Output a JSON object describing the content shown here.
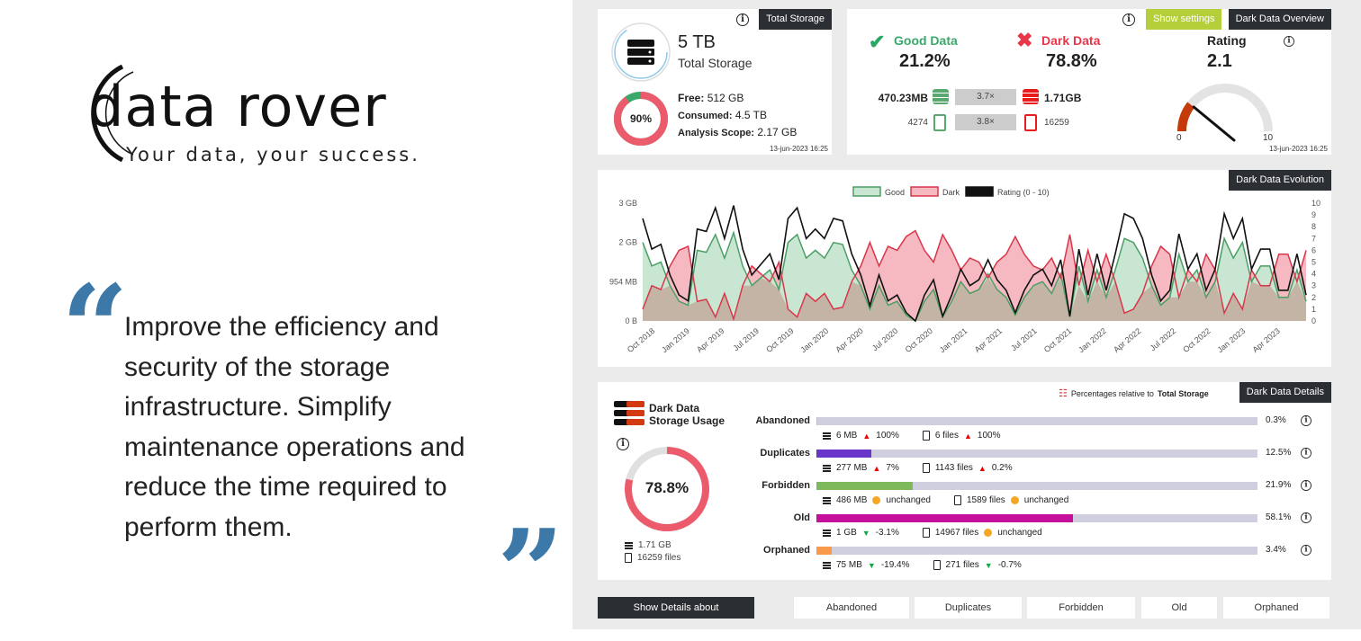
{
  "brand": {
    "name": "data rover",
    "tagline": "Your data, your success.",
    "quote": "Improve the efficiency and security of the storage infrastructure. Simplify maintenance operations and reduce the time required to perform them."
  },
  "total_storage": {
    "tag": "Total Storage",
    "value": "5 TB",
    "label": "Total Storage",
    "used_pct": 90,
    "used_pct_label": "90%",
    "free_label": "Free:",
    "free": "512 GB",
    "consumed_label": "Consumed:",
    "consumed": "4.5 TB",
    "scope_label": "Analysis Scope:",
    "scope": "2.17 GB",
    "timestamp": "13-jun-2023 16:25"
  },
  "overview": {
    "settings_label": "Show settings",
    "tag": "Dark Data Overview",
    "good_label": "Good Data",
    "good_pct": "21.2%",
    "dark_label": "Dark Data",
    "dark_pct": "78.8%",
    "good_size": "470.23MB",
    "size_ratio": "3.7×",
    "dark_size": "1.71GB",
    "good_files": "4274",
    "files_ratio": "3.8×",
    "dark_files": "16259",
    "rating_label": "Rating",
    "rating": "2.1",
    "rating_value": 2.1,
    "gauge_min": "0",
    "gauge_max": "10",
    "timestamp": "13-jun-2023 16:25"
  },
  "colors": {
    "good": "#3aa86b",
    "dark": "#e8364a",
    "donut": "#ec5b6b"
  },
  "chart_data": {
    "type": "area",
    "tag": "Dark Data Evolution",
    "legend": [
      "Good",
      "Dark",
      "Rating (0 - 10)"
    ],
    "legend_position": "top-center",
    "y_ticks": [
      {
        "v": 0,
        "label": "0 B"
      },
      {
        "v": 1,
        "label": "954 MB"
      },
      {
        "v": 2,
        "label": "2 GB"
      },
      {
        "v": 3,
        "label": "3 GB"
      }
    ],
    "ylim": [
      0,
      3
    ],
    "y2lim": [
      0,
      10
    ],
    "y2_ticks": [
      "0",
      "1",
      "2",
      "3",
      "4",
      "5",
      "6",
      "7",
      "8",
      "9",
      "10"
    ],
    "x_labels": [
      "Oct 2018",
      "Jan 2019",
      "Apr 2019",
      "Jul 2019",
      "Oct 2019",
      "Jan 2020",
      "Apr 2020",
      "Jul 2020",
      "Oct 2020",
      "Jan 2021",
      "Apr 2021",
      "Jul 2021",
      "Oct 2021",
      "Jan 2022",
      "Apr 2022",
      "Jul 2022",
      "Oct 2022",
      "Jan 2023",
      "Apr 2023"
    ],
    "series": [
      {
        "name": "Good",
        "unit": "GB",
        "values": [
          2.0,
          1.4,
          1.5,
          0.9,
          0.5,
          0.4,
          1.8,
          1.75,
          2.2,
          1.6,
          2.25,
          1.4,
          0.9,
          1.1,
          1.3,
          0.8,
          2.0,
          2.2,
          1.6,
          1.8,
          1.6,
          2.0,
          1.95,
          1.3,
          0.9,
          0.3,
          0.9,
          0.4,
          0.5,
          0.15,
          0.0,
          0.5,
          0.8,
          0.1,
          0.5,
          1.0,
          0.7,
          0.8,
          1.2,
          0.8,
          0.6,
          0.15,
          0.6,
          0.9,
          1.0,
          0.7,
          1.2,
          0.1,
          1.4,
          0.5,
          1.3,
          0.6,
          1.3,
          2.1,
          2.0,
          1.6,
          0.9,
          0.4,
          0.6,
          1.7,
          1.0,
          1.3,
          0.6,
          1.0,
          2.1,
          1.6,
          2.0,
          1.0,
          1.4,
          1.4,
          0.6,
          0.6,
          1.3,
          0.5
        ]
      },
      {
        "name": "Dark",
        "unit": "GB",
        "values": [
          0.3,
          0.9,
          0.8,
          1.4,
          1.8,
          1.9,
          0.5,
          0.55,
          0.1,
          0.7,
          0.05,
          0.9,
          1.4,
          1.2,
          1.0,
          1.5,
          0.3,
          0.1,
          0.7,
          0.5,
          0.7,
          0.3,
          0.35,
          1.0,
          1.4,
          2.0,
          1.4,
          1.9,
          1.8,
          2.15,
          2.3,
          1.8,
          1.5,
          2.2,
          1.8,
          1.3,
          1.6,
          1.5,
          1.1,
          1.5,
          1.7,
          2.15,
          1.7,
          1.4,
          1.3,
          1.6,
          1.1,
          2.2,
          0.9,
          1.8,
          1.0,
          1.7,
          1.0,
          0.2,
          0.3,
          0.7,
          1.4,
          1.9,
          1.7,
          0.6,
          1.3,
          1.0,
          1.7,
          1.3,
          0.2,
          0.7,
          0.3,
          1.3,
          0.9,
          0.9,
          1.7,
          1.7,
          1.0,
          1.8
        ]
      },
      {
        "name": "Rating (0 - 10)",
        "values": [
          8.7,
          6.1,
          6.5,
          3.9,
          2.2,
          1.7,
          7.8,
          7.6,
          9.6,
          7.0,
          9.8,
          6.1,
          3.9,
          4.8,
          5.7,
          3.5,
          8.7,
          9.6,
          7.0,
          7.8,
          7.0,
          8.7,
          8.5,
          5.7,
          3.9,
          1.3,
          3.9,
          1.7,
          2.2,
          0.7,
          0.0,
          2.2,
          3.5,
          0.4,
          2.2,
          4.4,
          3.0,
          3.5,
          5.2,
          3.5,
          2.6,
          0.7,
          2.6,
          3.9,
          4.4,
          3.0,
          5.2,
          0.4,
          6.1,
          2.2,
          5.7,
          2.6,
          5.7,
          9.1,
          8.7,
          7.0,
          3.9,
          1.7,
          2.6,
          7.4,
          4.4,
          5.7,
          2.6,
          4.4,
          9.1,
          7.0,
          8.7,
          4.4,
          6.1,
          6.1,
          2.6,
          2.6,
          5.7,
          2.2
        ]
      }
    ]
  },
  "details": {
    "tag": "Dark Data Details",
    "note_prefix": "Percentages relative to",
    "note_bold": "Total Storage",
    "title1": "Dark Data",
    "title2": "Storage Usage",
    "donut_pct": 78.8,
    "donut_label": "78.8%",
    "size": "1.71 GB",
    "files": "16259 files",
    "rows": [
      {
        "label": "Abandoned",
        "pct": 0.3,
        "pct_label": "0.3%",
        "color": "#f5c518",
        "size": "6 MB",
        "size_trend": "up",
        "size_change": "100%",
        "files": "6 files",
        "files_trend": "up",
        "files_change": "100%"
      },
      {
        "label": "Duplicates",
        "pct": 12.5,
        "pct_label": "12.5%",
        "color": "#6a35c9",
        "size": "277 MB",
        "size_trend": "up",
        "size_change": "7%",
        "files": "1143 files",
        "files_trend": "up",
        "files_change": "0.2%"
      },
      {
        "label": "Forbidden",
        "pct": 21.9,
        "pct_label": "21.9%",
        "color": "#7dba5c",
        "size": "486 MB",
        "size_trend": "same",
        "size_change": "unchanged",
        "files": "1589 files",
        "files_trend": "same",
        "files_change": "unchanged"
      },
      {
        "label": "Old",
        "pct": 58.1,
        "pct_label": "58.1%",
        "color": "#c4109a",
        "size": "1 GB",
        "size_trend": "down",
        "size_change": "-3.1%",
        "files": "14967 files",
        "files_trend": "same",
        "files_change": "unchanged"
      },
      {
        "label": "Orphaned",
        "pct": 3.4,
        "pct_label": "3.4%",
        "color": "#f79a4a",
        "size": "75 MB",
        "size_trend": "down",
        "size_change": "-19.4%",
        "files": "271 files",
        "files_trend": "down",
        "files_change": "-0.7%"
      }
    ]
  },
  "bottom": {
    "show_label": "Show Details about",
    "buttons": [
      "Abandoned",
      "Duplicates",
      "Forbidden",
      "Old",
      "Orphaned"
    ]
  }
}
